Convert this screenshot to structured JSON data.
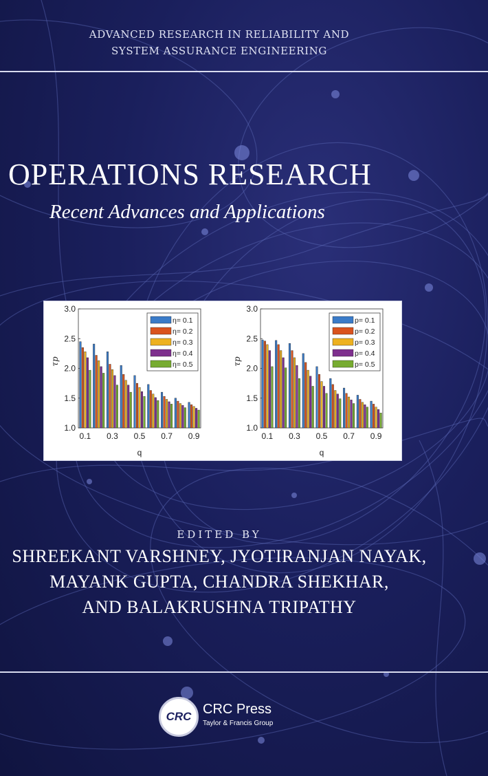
{
  "series": {
    "line1": "ADVANCED RESEARCH IN RELIABILITY AND",
    "line2": "SYSTEM ASSURANCE ENGINEERING"
  },
  "book": {
    "title": "OPERATIONS RESEARCH",
    "subtitle": "Recent Advances and Applications"
  },
  "editors": {
    "label": "EDITED BY",
    "line1": "SHREEKANT VARSHNEY, JYOTIRANJAN NAYAK,",
    "line2": "MAYANK GUPTA, CHANDRA SHEKHAR,",
    "line3": "AND BALAKRUSHNA TRIPATHY"
  },
  "publisher": {
    "logo_text": "CRC",
    "name": "CRC Press",
    "group": "Taylor & Francis Group"
  },
  "colors": {
    "background": "#1a1f5c",
    "text": "#ffffff"
  },
  "chart_data": [
    {
      "type": "bar",
      "xlabel": "q",
      "ylabel": "τp",
      "ylim": [
        1.0,
        3.0
      ],
      "yticks": [
        "1.0",
        "1.5",
        "2.0",
        "2.5",
        "3.0"
      ],
      "xticks": [
        "0.1",
        "0.3",
        "0.5",
        "0.7",
        "0.9"
      ],
      "categories": [
        0.1,
        0.2,
        0.3,
        0.4,
        0.5,
        0.6,
        0.7,
        0.8,
        0.9
      ],
      "legend_position": "top-right",
      "series": [
        {
          "name": "η= 0.1",
          "color": "#3a7bc8",
          "values": [
            2.45,
            2.41,
            2.28,
            2.05,
            1.88,
            1.73,
            1.6,
            1.5,
            1.43
          ]
        },
        {
          "name": "η= 0.2",
          "color": "#d9531e",
          "values": [
            2.35,
            2.22,
            2.07,
            1.9,
            1.75,
            1.63,
            1.53,
            1.45,
            1.39
          ]
        },
        {
          "name": "η= 0.3",
          "color": "#edb120",
          "values": [
            2.28,
            2.13,
            1.98,
            1.8,
            1.68,
            1.57,
            1.48,
            1.41,
            1.36
          ]
        },
        {
          "name": "η= 0.4",
          "color": "#7e2f8e",
          "values": [
            2.18,
            2.03,
            1.88,
            1.72,
            1.61,
            1.51,
            1.44,
            1.38,
            1.33
          ]
        },
        {
          "name": "η= 0.5",
          "color": "#77ac30",
          "values": [
            1.97,
            1.92,
            1.72,
            1.6,
            1.53,
            1.46,
            1.4,
            1.34,
            1.3
          ]
        }
      ]
    },
    {
      "type": "bar",
      "xlabel": "q",
      "ylabel": "τp",
      "ylim": [
        1.0,
        3.0
      ],
      "yticks": [
        "1.0",
        "1.5",
        "2.0",
        "2.5",
        "3.0"
      ],
      "xticks": [
        "0.1",
        "0.3",
        "0.5",
        "0.7",
        "0.9"
      ],
      "categories": [
        0.1,
        0.2,
        0.3,
        0.4,
        0.5,
        0.6,
        0.7,
        0.8,
        0.9
      ],
      "legend_position": "top-right",
      "series": [
        {
          "name": "p= 0.1",
          "color": "#3a7bc8",
          "values": [
            2.48,
            2.47,
            2.42,
            2.25,
            2.03,
            1.83,
            1.67,
            1.55,
            1.45
          ]
        },
        {
          "name": "p= 0.2",
          "color": "#d9531e",
          "values": [
            2.46,
            2.4,
            2.3,
            2.1,
            1.9,
            1.73,
            1.58,
            1.48,
            1.4
          ]
        },
        {
          "name": "p= 0.3",
          "color": "#edb120",
          "values": [
            2.4,
            2.3,
            2.18,
            1.97,
            1.78,
            1.63,
            1.52,
            1.43,
            1.35
          ]
        },
        {
          "name": "p= 0.4",
          "color": "#7e2f8e",
          "values": [
            2.3,
            2.18,
            2.05,
            1.87,
            1.7,
            1.57,
            1.47,
            1.39,
            1.31
          ]
        },
        {
          "name": "p= 0.5",
          "color": "#77ac30",
          "values": [
            2.03,
            2.01,
            1.83,
            1.7,
            1.58,
            1.49,
            1.41,
            1.35,
            1.25
          ]
        }
      ]
    }
  ]
}
